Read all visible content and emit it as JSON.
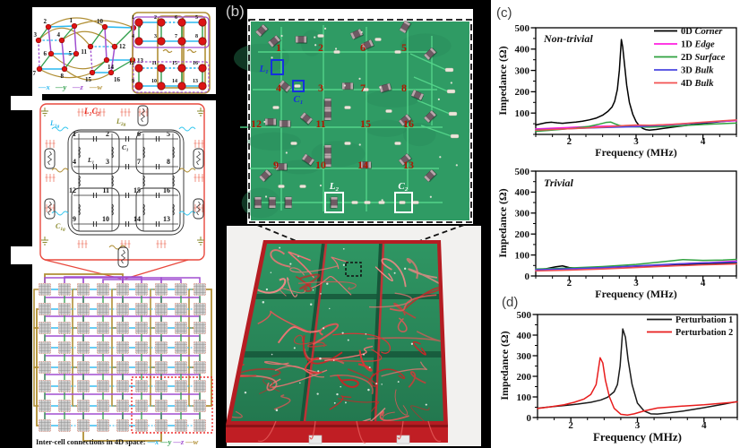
{
  "figure": {
    "background": "#000000"
  },
  "panel_a": {
    "node_rows": [
      [
        "1",
        "2",
        "6",
        "5"
      ],
      [
        "4",
        "3",
        "7",
        "8"
      ],
      [
        "12",
        "11",
        "15",
        "16"
      ],
      [
        "9",
        "10",
        "14",
        "13"
      ]
    ],
    "tesseract_numbers": [
      "1",
      "2",
      "3",
      "4",
      "5",
      "6",
      "7",
      "8",
      "9",
      "10",
      "11",
      "12",
      "13",
      "14",
      "15",
      "16"
    ],
    "axis_legend": [
      {
        "label": "x",
        "color": "#2bb8ef"
      },
      {
        "label": "y",
        "color": "#2f9e4b"
      },
      {
        "label": "z",
        "color": "#a04fd0"
      },
      {
        "label": "w",
        "color": "#b18f35"
      }
    ],
    "legend_dash": "—",
    "circuit_labels": {
      "l2c2": {
        "text": "L₂C₂",
        "color": "#e8281e"
      },
      "l1g": {
        "base": "L",
        "sub": "1g",
        "color": "#2bb8ef"
      },
      "l2g": {
        "base": "L",
        "sub": "2g",
        "color": "#8a8a2d"
      },
      "c1": {
        "text": "C₁",
        "color": "#222222"
      },
      "l1": {
        "text": "L₁",
        "color": "#222222"
      },
      "c1g": {
        "base": "C",
        "sub": "1g",
        "color": "#8a8a2d"
      }
    },
    "intercell_caption": "Inter-cell connections in 4D space:"
  },
  "panel_b": {
    "label": "(b)",
    "node_rows": [
      [
        "1",
        "2",
        "6",
        "5"
      ],
      [
        "4",
        "3",
        "7",
        "8"
      ],
      [
        "12",
        "11",
        "15",
        "16"
      ],
      [
        "9",
        "10",
        "14",
        "13"
      ]
    ],
    "callouts": {
      "l1": "L₁",
      "c1": "C₁",
      "l2": "L₂",
      "c2": "C₂"
    },
    "colors": {
      "board": "#2f9b64",
      "trace": "#55d68b",
      "number": "#ad1800",
      "callout_blue": "#1531dd",
      "callout_white": "#ffffff"
    }
  },
  "panel_c": {
    "label": "(c)"
  },
  "panel_d": {
    "label": "(d)"
  },
  "chart_data": [
    {
      "id": "nontrivial",
      "type": "line",
      "annotation": "Non-trivial",
      "xlabel": "Frequency (MHz)",
      "ylabel": "Impedance (Ω)",
      "xlim": [
        1.5,
        4.5
      ],
      "ylim": [
        0,
        500
      ],
      "xticks": [
        2,
        3,
        4
      ],
      "yticks": [
        100,
        200,
        300,
        400,
        500
      ],
      "x_minor_step": 0.25,
      "y_minor_step": 50,
      "grid": false,
      "legend_position": "top-right",
      "series": [
        {
          "roman": "0D",
          "italic": "Corner",
          "color": "#000000",
          "x": [
            1.5,
            1.58,
            1.66,
            1.74,
            1.82,
            1.9,
            2.0,
            2.1,
            2.2,
            2.3,
            2.4,
            2.5,
            2.58,
            2.64,
            2.68,
            2.72,
            2.75,
            2.78,
            2.8,
            2.83,
            2.86,
            2.9,
            2.95,
            3.0,
            3.05,
            3.1,
            3.15,
            3.2,
            3.3,
            3.4,
            3.6,
            3.8,
            4.0,
            4.2,
            4.5
          ],
          "y": [
            44,
            50,
            55,
            57,
            54,
            52,
            55,
            58,
            62,
            68,
            76,
            90,
            108,
            128,
            155,
            210,
            300,
            445,
            410,
            320,
            230,
            150,
            95,
            60,
            40,
            28,
            22,
            20,
            23,
            28,
            36,
            44,
            52,
            58,
            66
          ]
        },
        {
          "roman": "1D",
          "italic": "Edge",
          "color": "#ff1fe0",
          "x": [
            1.5,
            1.8,
            2.1,
            2.4,
            2.7,
            2.9,
            3.1,
            3.4,
            3.7,
            4.0,
            4.3,
            4.5
          ],
          "y": [
            26,
            30,
            34,
            38,
            40,
            38,
            40,
            45,
            50,
            56,
            61,
            64
          ]
        },
        {
          "roman": "2D",
          "italic": "Surface",
          "color": "#2fa13f",
          "x": [
            1.5,
            1.7,
            1.9,
            2.1,
            2.3,
            2.45,
            2.55,
            2.62,
            2.68,
            2.75,
            2.85,
            3.0,
            3.2,
            3.5,
            3.8,
            4.1,
            4.4,
            4.5
          ],
          "y": [
            14,
            19,
            24,
            30,
            38,
            48,
            56,
            58,
            50,
            42,
            37,
            35,
            34,
            38,
            43,
            48,
            52,
            53
          ]
        },
        {
          "roman": "3D",
          "italic": "Bulk",
          "color": "#4a46e0",
          "x": [
            1.5,
            2.0,
            2.5,
            3.0,
            3.5,
            4.0,
            4.5
          ],
          "y": [
            22,
            27,
            32,
            36,
            44,
            55,
            67
          ]
        },
        {
          "roman": "4D",
          "italic": "Bulk",
          "color": "#f25252",
          "x": [
            1.5,
            1.9,
            2.3,
            2.6,
            2.85,
            3.0,
            3.2,
            3.5,
            3.9,
            4.3,
            4.5
          ],
          "y": [
            20,
            25,
            31,
            36,
            42,
            44,
            43,
            46,
            55,
            64,
            68
          ]
        }
      ]
    },
    {
      "id": "trivial",
      "type": "line",
      "annotation": "Trivial",
      "xlabel": "Frequency (MHz)",
      "ylabel": "Impedance (Ω)",
      "xlim": [
        1.5,
        4.5
      ],
      "ylim": [
        0,
        500
      ],
      "xticks": [
        2,
        3,
        4
      ],
      "yticks": [
        0,
        100,
        200,
        300,
        400,
        500
      ],
      "x_minor_step": 0.25,
      "y_minor_step": 50,
      "grid": false,
      "legend_position": "none",
      "series": [
        {
          "roman": "0D",
          "italic": "Corner",
          "color": "#000000",
          "x": [
            1.5,
            1.65,
            1.8,
            1.9,
            2.0,
            2.15,
            2.4,
            2.8,
            3.2,
            3.6,
            4.0,
            4.3,
            4.5
          ],
          "y": [
            30,
            34,
            44,
            48,
            40,
            36,
            38,
            42,
            47,
            53,
            58,
            61,
            60
          ]
        },
        {
          "roman": "1D",
          "italic": "Edge",
          "color": "#ff1fe0",
          "x": [
            1.5,
            2.0,
            2.5,
            3.0,
            3.4,
            3.8,
            4.1,
            4.5
          ],
          "y": [
            28,
            33,
            39,
            47,
            53,
            61,
            64,
            71
          ]
        },
        {
          "roman": "2D",
          "italic": "Surface",
          "color": "#2fa13f",
          "x": [
            1.5,
            2.0,
            2.5,
            3.0,
            3.4,
            3.7,
            4.0,
            4.3,
            4.5
          ],
          "y": [
            33,
            38,
            45,
            55,
            68,
            78,
            74,
            76,
            79
          ]
        },
        {
          "roman": "3D",
          "italic": "Bulk",
          "color": "#4a46e0",
          "x": [
            1.5,
            2.0,
            2.5,
            3.0,
            3.5,
            4.0,
            4.5
          ],
          "y": [
            30,
            34,
            40,
            48,
            56,
            62,
            67
          ]
        },
        {
          "roman": "4D",
          "italic": "Bulk",
          "color": "#f25252",
          "x": [
            1.5,
            2.0,
            2.5,
            3.0,
            3.5,
            4.0,
            4.5
          ],
          "y": [
            24,
            28,
            33,
            40,
            47,
            53,
            57
          ]
        }
      ]
    },
    {
      "id": "perturbation",
      "type": "line",
      "annotation": "",
      "xlabel": "Frequency (MHz)",
      "ylabel": "Impedance (Ω)",
      "xlim": [
        1.5,
        4.5
      ],
      "ylim": [
        0,
        500
      ],
      "xticks": [
        2,
        3,
        4
      ],
      "yticks": [
        0,
        100,
        200,
        300,
        400,
        500
      ],
      "x_minor_step": 0.25,
      "y_minor_step": 50,
      "grid": false,
      "legend_position": "top-right",
      "series": [
        {
          "roman": "Perturbation 1",
          "italic": "",
          "color": "#1a1a1a",
          "x": [
            1.5,
            1.7,
            1.9,
            2.1,
            2.3,
            2.45,
            2.55,
            2.65,
            2.7,
            2.74,
            2.78,
            2.82,
            2.86,
            2.92,
            3.0,
            3.1,
            3.2,
            3.3,
            3.45,
            3.7,
            4.0,
            4.3,
            4.5
          ],
          "y": [
            45,
            52,
            58,
            65,
            74,
            85,
            98,
            125,
            160,
            250,
            430,
            390,
            280,
            160,
            70,
            32,
            18,
            17,
            22,
            32,
            48,
            65,
            78
          ]
        },
        {
          "roman": "Perturbation 2",
          "italic": "",
          "color": "#e81c1c",
          "x": [
            1.5,
            1.7,
            1.9,
            2.05,
            2.2,
            2.3,
            2.38,
            2.44,
            2.48,
            2.52,
            2.58,
            2.65,
            2.75,
            2.85,
            2.95,
            3.1,
            3.3,
            3.6,
            4.0,
            4.4,
            4.5
          ],
          "y": [
            44,
            52,
            62,
            74,
            90,
            112,
            160,
            290,
            265,
            180,
            100,
            45,
            16,
            12,
            18,
            32,
            46,
            54,
            62,
            73,
            76
          ]
        }
      ]
    }
  ]
}
